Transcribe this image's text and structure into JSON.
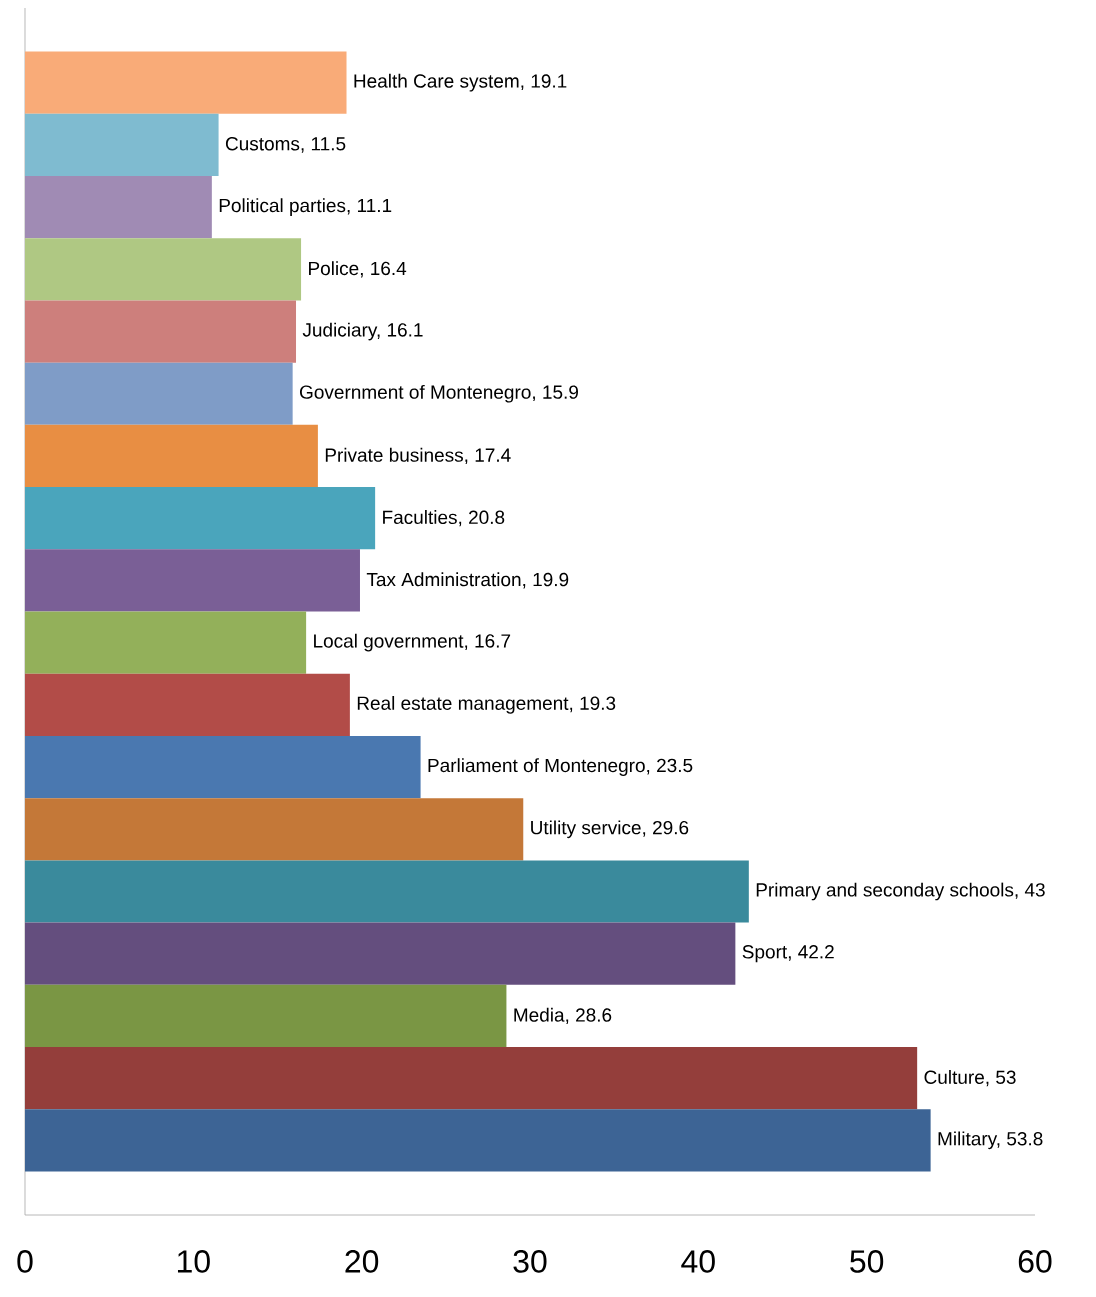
{
  "chart_data": {
    "type": "bar",
    "orientation": "horizontal",
    "categories": [
      null,
      null,
      null,
      null,
      null,
      null,
      null,
      null,
      null,
      null,
      null,
      null,
      null,
      null,
      null,
      null,
      null,
      null
    ],
    "values": [
      19.1,
      11.5,
      11.1,
      16.4,
      16.1,
      15.9,
      17.4,
      20.8,
      19.9,
      16.7,
      19.3,
      23.5,
      29.6,
      43,
      42.2,
      28.6,
      53,
      53.8
    ],
    "value_labels": [
      "Health Care system, 19.1",
      "Customs, 11.5",
      "Political parties, 11.1",
      "Police, 16.4",
      "Judiciary, 16.1",
      "Government of Montenegro, 15.9",
      "Private business, 17.4",
      "Faculties, 20.8",
      "Tax Administration, 19.9",
      "Local government, 16.7",
      "Real estate management, 19.3",
      "Parliament of Montenegro, 23.5",
      "Utility service, 29.6",
      "Primary and seconday schools, 43",
      "Sport, 42.2",
      "Media, 28.6",
      "Culture, 53",
      "Military, 53.8"
    ],
    "colors": [
      "#f9ab78",
      "#7fbbd0",
      "#a08bb4",
      "#afc883",
      "#cd7f7c",
      "#7f9cc7",
      "#e88e43",
      "#4aa5bc",
      "#7a5f96",
      "#93b05a",
      "#b24c48",
      "#4a78b0",
      "#c47838",
      "#3a8a9c",
      "#644e7e",
      "#7a9644",
      "#943e3b",
      "#3d6495"
    ],
    "xlim": [
      0,
      60
    ],
    "xticks": [
      0,
      10,
      20,
      30,
      40,
      50,
      60
    ],
    "grid": false,
    "tick_labels": "x"
  }
}
